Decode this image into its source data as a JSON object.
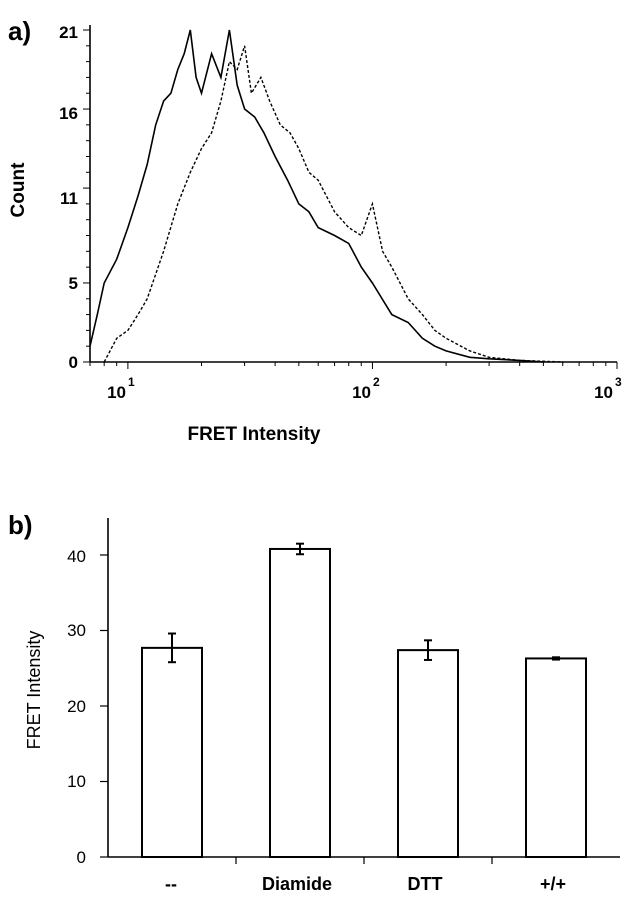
{
  "panels": [
    {
      "label": "a)",
      "xlabel": "FRET Intensity",
      "ylabel": "Count",
      "y_ticks": [
        "0",
        "5",
        "11",
        "16",
        "21"
      ],
      "x_ticks": [
        {
          "base": "10",
          "exp": "1"
        },
        {
          "base": "10",
          "exp": "2"
        },
        {
          "base": "10",
          "exp": "3"
        }
      ]
    },
    {
      "label": "b)",
      "xlabel": "",
      "ylabel": "FRET Intensity",
      "y_ticks": [
        "0",
        "10",
        "20",
        "30",
        "40"
      ],
      "categories": [
        "--",
        "Diamide",
        "DTT",
        "+/+"
      ]
    }
  ],
  "chart_data": [
    {
      "type": "line",
      "title": "",
      "xlabel": "FRET Intensity",
      "ylabel": "Count",
      "x_scale": "log",
      "xlim": [
        7,
        1000
      ],
      "ylim": [
        0,
        21
      ],
      "y_ticks": [
        0,
        5,
        11,
        16,
        21
      ],
      "x_ticks": [
        10,
        100,
        1000
      ],
      "series": [
        {
          "style": "solid",
          "x": [
            7,
            7.5,
            8,
            9,
            10,
            11,
            12,
            13,
            14,
            15,
            16,
            17,
            18,
            19,
            20,
            22,
            24,
            26,
            28,
            30,
            33,
            36,
            40,
            45,
            50,
            55,
            60,
            70,
            80,
            90,
            100,
            120,
            140,
            160,
            180,
            200,
            250,
            300,
            400,
            500
          ],
          "y": [
            1,
            3,
            5,
            6.5,
            8.5,
            10.5,
            12.5,
            15,
            16.5,
            17,
            18.5,
            19.5,
            21,
            18,
            17,
            19.5,
            18,
            21,
            17.5,
            16,
            15.5,
            14.5,
            13,
            11.5,
            10,
            9.5,
            8.5,
            8,
            7.5,
            6,
            5,
            3,
            2.5,
            1.5,
            1,
            0.7,
            0.3,
            0.2,
            0.1,
            0
          ]
        },
        {
          "style": "dotted",
          "x": [
            8,
            9,
            10,
            11,
            12,
            14,
            16,
            18,
            20,
            22,
            24,
            26,
            28,
            30,
            32,
            35,
            38,
            42,
            46,
            50,
            55,
            60,
            70,
            80,
            90,
            100,
            110,
            120,
            140,
            160,
            180,
            200,
            250,
            300,
            400,
            600
          ],
          "y": [
            0,
            1.5,
            2,
            3,
            4,
            7,
            10,
            12,
            13.5,
            14.5,
            16.5,
            19,
            18.5,
            20,
            17,
            18,
            16.5,
            15,
            14.5,
            13.5,
            12,
            11.5,
            9.5,
            8.5,
            8,
            10,
            7,
            6,
            4,
            3,
            2,
            1.5,
            0.7,
            0.3,
            0.1,
            0
          ]
        }
      ]
    },
    {
      "type": "bar",
      "title": "",
      "xlabel": "",
      "ylabel": "FRET Intensity",
      "ylim": [
        0,
        45
      ],
      "y_ticks": [
        0,
        10,
        20,
        30,
        40
      ],
      "categories": [
        "--",
        "Diamide",
        "DTT",
        "+/+"
      ],
      "values": [
        27.7,
        40.8,
        27.4,
        26.3
      ],
      "errors": [
        1.9,
        0.7,
        1.3,
        0.15
      ]
    }
  ]
}
